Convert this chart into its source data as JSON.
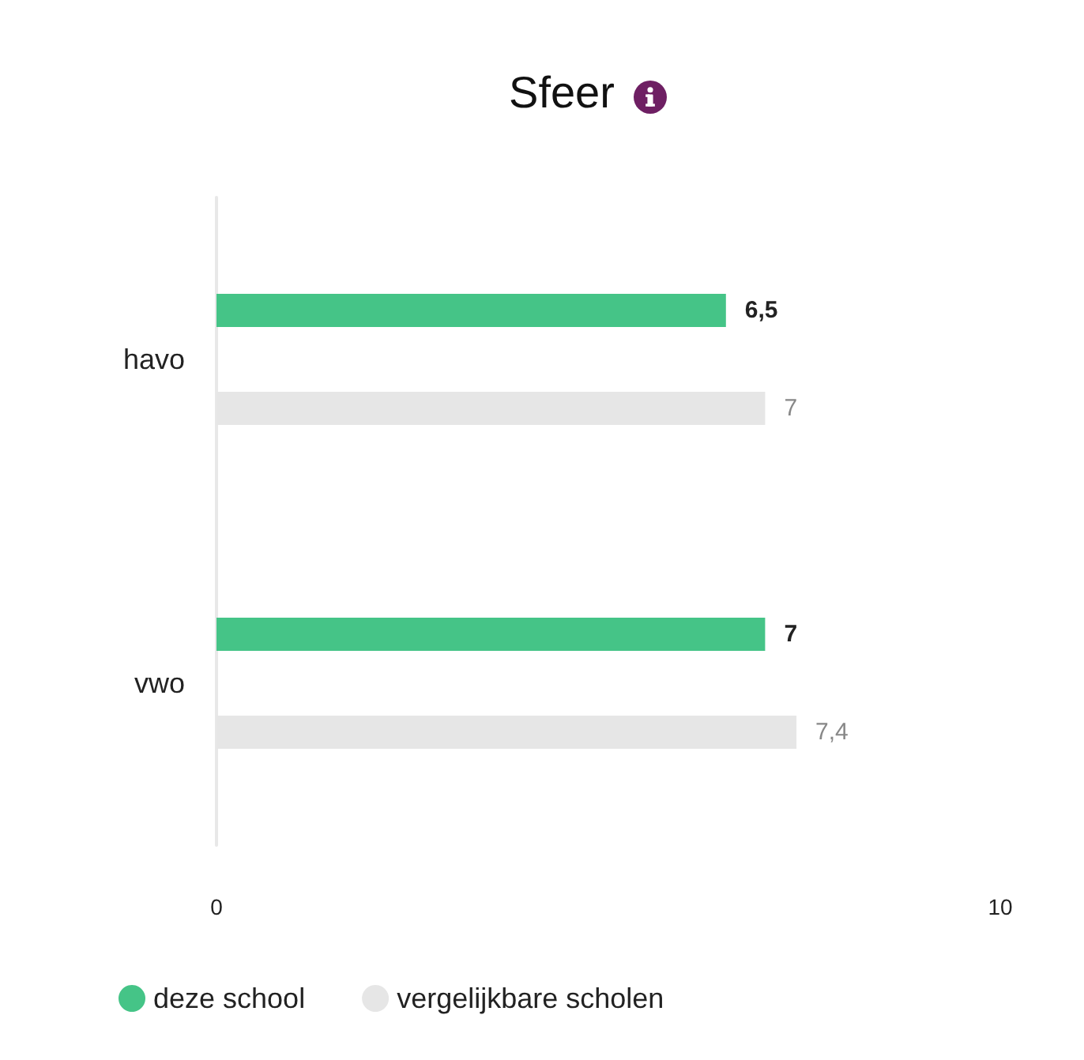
{
  "chart_data": {
    "type": "bar",
    "orientation": "horizontal",
    "title": "Sfeer",
    "categories": [
      "havo",
      "vwo"
    ],
    "series": [
      {
        "name": "deze school",
        "color": "#45c487",
        "values": [
          6.5,
          7
        ],
        "value_labels": [
          "6,5",
          "7"
        ]
      },
      {
        "name": "vergelijkbare scholen",
        "color": "#e6e6e6",
        "values": [
          7,
          7.4
        ],
        "value_labels": [
          "7",
          "7,4"
        ]
      }
    ],
    "xlim": [
      0,
      10
    ],
    "xticks": [
      0,
      10
    ],
    "legend": "bottom left"
  }
}
